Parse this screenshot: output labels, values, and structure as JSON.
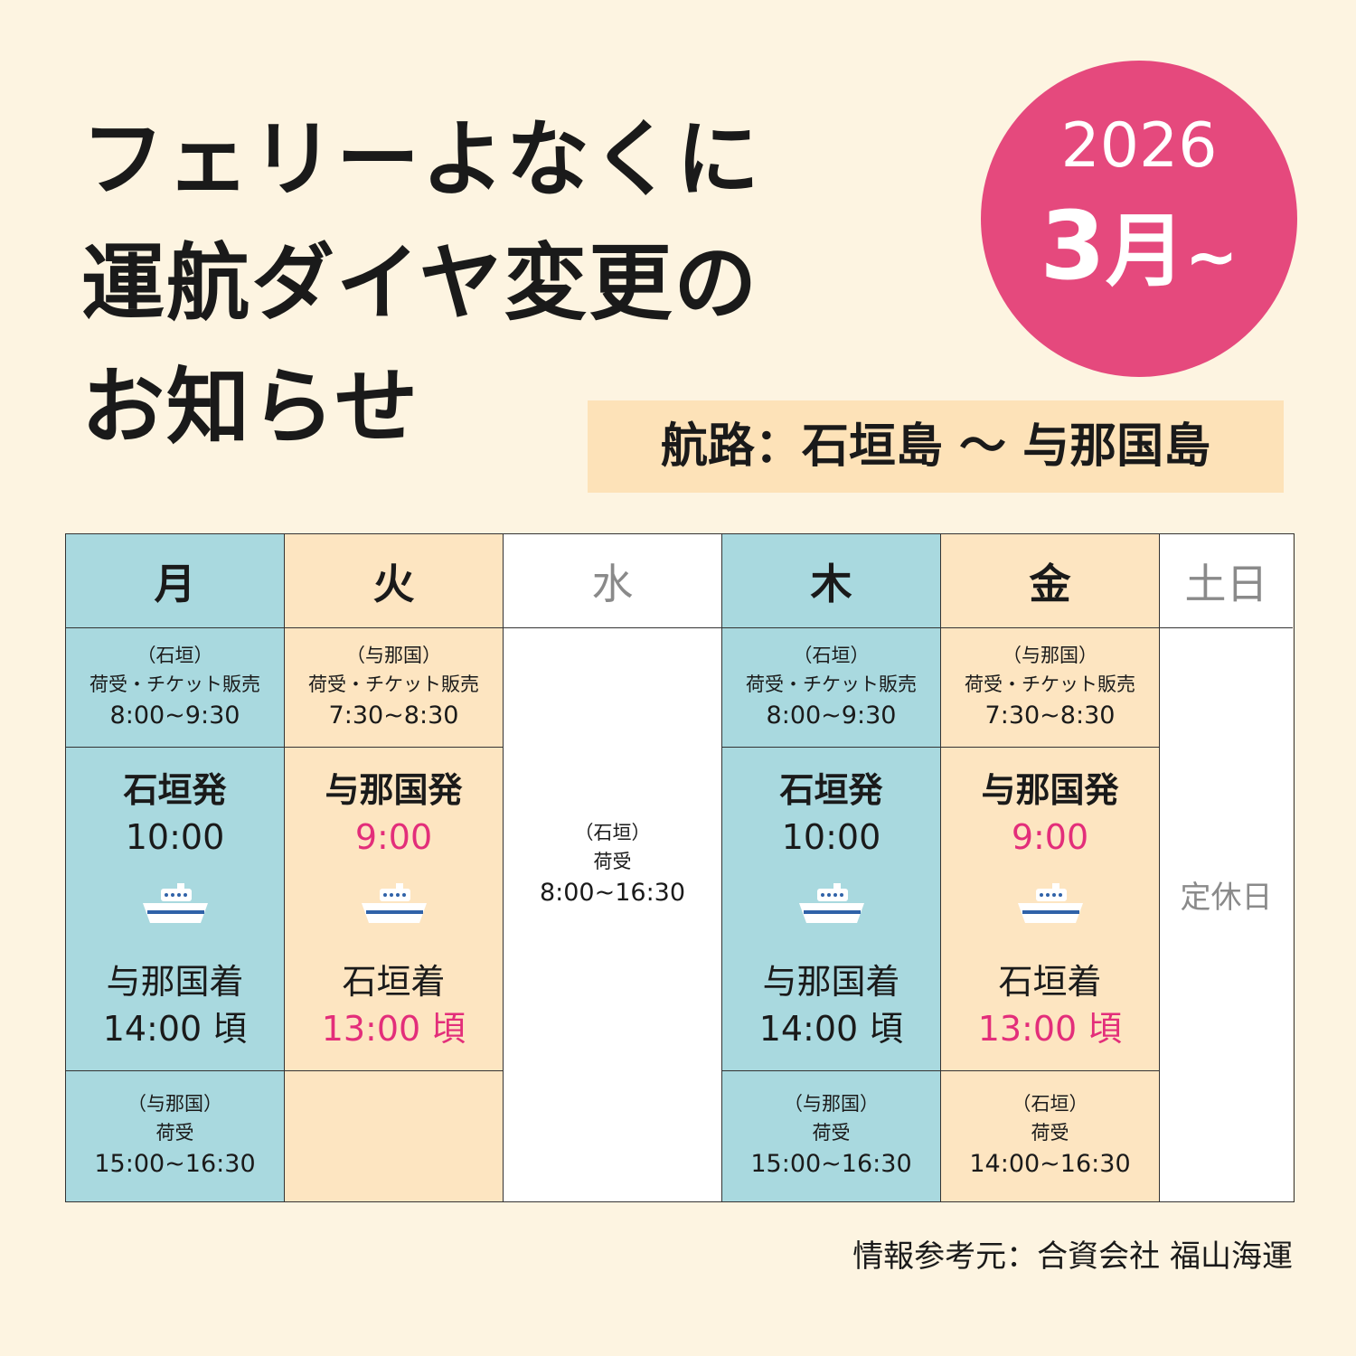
{
  "title": {
    "line1": "フェリーよなくに",
    "line2": "運航ダイヤ変更の",
    "line3": "お知らせ"
  },
  "badge": {
    "year": "2026",
    "month_num": "3",
    "month_kanji": "月",
    "tilde": "~"
  },
  "route": "航路：石垣島 〜 与那国島",
  "days": {
    "mon": "月",
    "tue": "火",
    "wed": "水",
    "thu": "木",
    "fri": "金",
    "satsun": "土日"
  },
  "mon": {
    "top": {
      "place": "（石垣）",
      "label": "荷受・チケット販売",
      "time": "8:00~9:30"
    },
    "depart": "石垣発",
    "depart_time": "10:00",
    "arrive": "与那国着",
    "arrive_time": "14:00 頃",
    "bottom": {
      "place": "（与那国）",
      "label": "荷受",
      "time": "15:00~16:30"
    }
  },
  "tue": {
    "top": {
      "place": "（与那国）",
      "label": "荷受・チケット販売",
      "time": "7:30~8:30"
    },
    "depart": "与那国発",
    "depart_time": "9:00",
    "arrive": "石垣着",
    "arrive_time": "13:00 頃"
  },
  "wed": {
    "place": "（石垣）",
    "label": "荷受",
    "time": "8:00~16:30"
  },
  "thu": {
    "top": {
      "place": "（石垣）",
      "label": "荷受・チケット販売",
      "time": "8:00~9:30"
    },
    "depart": "石垣発",
    "depart_time": "10:00",
    "arrive": "与那国着",
    "arrive_time": "14:00 頃",
    "bottom": {
      "place": "（与那国）",
      "label": "荷受",
      "time": "15:00~16:30"
    }
  },
  "fri": {
    "top": {
      "place": "（与那国）",
      "label": "荷受・チケット販売",
      "time": "7:30~8:30"
    },
    "depart": "与那国発",
    "depart_time": "9:00",
    "arrive": "石垣着",
    "arrive_time": "13:00 頃",
    "bottom": {
      "place": "（石垣）",
      "label": "荷受",
      "time": "14:00~16:30"
    }
  },
  "satsun": {
    "note": "定休日"
  },
  "icons": {
    "ship": "ferry-ship-icon"
  },
  "colors": {
    "blue": "#a9d9df",
    "peach": "#fde5c1",
    "pink": "#e5497d",
    "highlight": "#e32e7a"
  },
  "source": "情報参考元：合資会社 福山海運"
}
